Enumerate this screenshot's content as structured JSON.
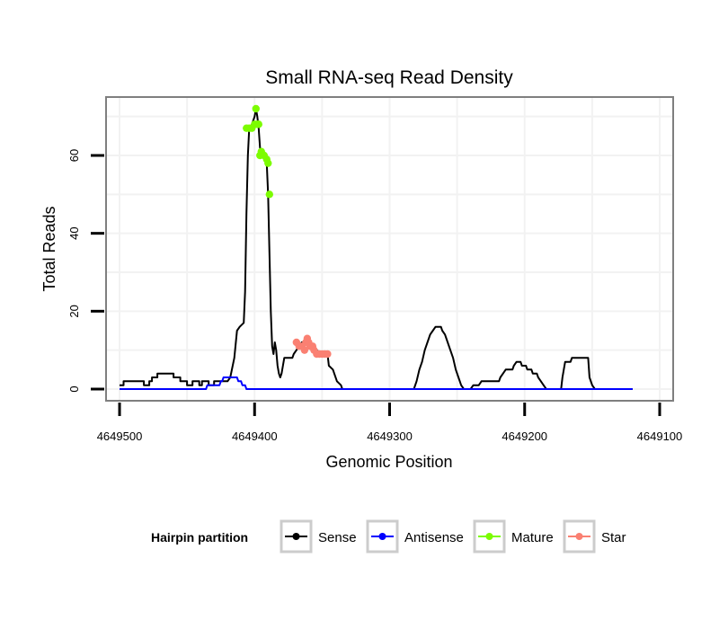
{
  "chart_data": {
    "type": "line",
    "title": "Small RNA-seq Read Density",
    "xlabel": "Genomic Position",
    "ylabel": "Total Reads",
    "xlim": [
      4649510,
      4649090
    ],
    "ylim": [
      -3,
      75
    ],
    "x_reversed": true,
    "x_ticks": [
      4649500,
      4649400,
      4649300,
      4649200,
      4649100
    ],
    "x_tick_labels": [
      "4649500",
      "4649400",
      "4649300",
      "4649200",
      "4649100"
    ],
    "y_ticks": [
      0,
      20,
      40,
      60
    ],
    "y_tick_labels": [
      "0",
      "20",
      "40",
      "60"
    ],
    "grid": true,
    "legend": {
      "title": "Hairpin partition",
      "position": "bottom",
      "entries": [
        "Sense",
        "Antisense",
        "Mature",
        "Star"
      ]
    },
    "series": [
      {
        "name": "Sense",
        "color": "#000000",
        "style": "line",
        "points": [
          [
            4649500,
            1
          ],
          [
            4649497,
            1
          ],
          [
            4649497,
            2
          ],
          [
            4649495,
            2
          ],
          [
            4649482,
            2
          ],
          [
            4649482,
            1
          ],
          [
            4649478,
            1
          ],
          [
            4649478,
            2
          ],
          [
            4649476,
            2
          ],
          [
            4649476,
            3
          ],
          [
            4649472,
            3
          ],
          [
            4649472,
            4
          ],
          [
            4649460,
            4
          ],
          [
            4649460,
            3
          ],
          [
            4649455,
            3
          ],
          [
            4649455,
            2
          ],
          [
            4649450,
            2
          ],
          [
            4649450,
            1
          ],
          [
            4649446,
            1
          ],
          [
            4649446,
            2
          ],
          [
            4649441,
            2
          ],
          [
            4649441,
            1
          ],
          [
            4649439,
            1
          ],
          [
            4649439,
            2
          ],
          [
            4649434,
            2
          ],
          [
            4649434,
            1
          ],
          [
            4649430,
            1
          ],
          [
            4649430,
            2
          ],
          [
            4649420,
            2
          ],
          [
            4649418,
            3
          ],
          [
            4649415,
            8
          ],
          [
            4649413,
            15
          ],
          [
            4649411,
            16
          ],
          [
            4649408,
            17
          ],
          [
            4649407,
            25
          ],
          [
            4649406,
            45
          ],
          [
            4649405,
            60
          ],
          [
            4649404,
            67
          ],
          [
            4649402,
            68
          ],
          [
            4649400,
            70
          ],
          [
            4649399,
            72
          ],
          [
            4649398,
            70
          ],
          [
            4649397,
            67
          ],
          [
            4649396,
            62
          ],
          [
            4649394,
            60
          ],
          [
            4649392,
            59
          ],
          [
            4649391,
            58
          ],
          [
            4649390,
            50
          ],
          [
            4649389,
            35
          ],
          [
            4649388,
            20
          ],
          [
            4649387,
            11
          ],
          [
            4649386,
            9
          ],
          [
            4649385,
            12
          ],
          [
            4649384,
            10
          ],
          [
            4649383,
            6
          ],
          [
            4649382,
            4
          ],
          [
            4649381,
            3
          ],
          [
            4649380,
            4
          ],
          [
            4649379,
            6
          ],
          [
            4649378,
            8
          ],
          [
            4649372,
            8
          ],
          [
            4649371,
            9
          ],
          [
            4649369,
            10
          ],
          [
            4649367,
            11
          ],
          [
            4649365,
            12
          ],
          [
            4649362,
            12
          ],
          [
            4649360,
            11
          ],
          [
            4649357,
            10
          ],
          [
            4649354,
            10
          ],
          [
            4649350,
            9
          ],
          [
            4649346,
            9
          ],
          [
            4649345,
            6
          ],
          [
            4649342,
            5
          ],
          [
            4649339,
            2
          ],
          [
            4649336,
            1
          ],
          [
            4649335,
            0
          ],
          [
            4649282,
            0
          ],
          [
            4649280,
            2
          ],
          [
            4649278,
            5
          ],
          [
            4649276,
            7
          ],
          [
            4649274,
            10
          ],
          [
            4649272,
            12
          ],
          [
            4649270,
            14
          ],
          [
            4649268,
            15
          ],
          [
            4649266,
            16
          ],
          [
            4649262,
            16
          ],
          [
            4649261,
            15
          ],
          [
            4649259,
            14
          ],
          [
            4649257,
            12
          ],
          [
            4649255,
            10
          ],
          [
            4649253,
            8
          ],
          [
            4649251,
            5
          ],
          [
            4649249,
            3
          ],
          [
            4649247,
            1
          ],
          [
            4649245,
            0
          ],
          [
            4649240,
            0
          ],
          [
            4649238,
            1
          ],
          [
            4649234,
            1
          ],
          [
            4649232,
            2
          ],
          [
            4649219,
            2
          ],
          [
            4649218,
            3
          ],
          [
            4649216,
            4
          ],
          [
            4649214,
            5
          ],
          [
            4649209,
            5
          ],
          [
            4649208,
            6
          ],
          [
            4649206,
            7
          ],
          [
            4649203,
            7
          ],
          [
            4649202,
            6
          ],
          [
            4649199,
            6
          ],
          [
            4649198,
            5
          ],
          [
            4649195,
            5
          ],
          [
            4649194,
            4
          ],
          [
            4649191,
            4
          ],
          [
            4649190,
            3
          ],
          [
            4649188,
            2
          ],
          [
            4649186,
            1
          ],
          [
            4649184,
            0
          ],
          [
            4649173,
            0
          ],
          [
            4649172,
            3
          ],
          [
            4649171,
            5
          ],
          [
            4649170,
            7
          ],
          [
            4649166,
            7
          ],
          [
            4649165,
            8
          ],
          [
            4649153,
            8
          ],
          [
            4649152,
            3
          ],
          [
            4649150,
            1
          ],
          [
            4649148,
            0
          ],
          [
            4649120,
            0
          ]
        ]
      },
      {
        "name": "Antisense",
        "color": "#0000ff",
        "style": "line",
        "points": [
          [
            4649500,
            0
          ],
          [
            4649436,
            0
          ],
          [
            4649435,
            1
          ],
          [
            4649426,
            1
          ],
          [
            4649425,
            2
          ],
          [
            4649424,
            2
          ],
          [
            4649423,
            3
          ],
          [
            4649413,
            3
          ],
          [
            4649412,
            2
          ],
          [
            4649410,
            2
          ],
          [
            4649409,
            1
          ],
          [
            4649407,
            1
          ],
          [
            4649406,
            0
          ],
          [
            4649120,
            0
          ]
        ]
      },
      {
        "name": "Mature",
        "color": "#7cfc00",
        "style": "points",
        "points": [
          [
            4649406,
            67
          ],
          [
            4649404,
            67
          ],
          [
            4649402,
            67
          ],
          [
            4649400,
            68
          ],
          [
            4649399,
            72
          ],
          [
            4649398,
            68
          ],
          [
            4649397,
            68
          ],
          [
            4649396,
            60
          ],
          [
            4649395,
            61
          ],
          [
            4649393,
            60
          ],
          [
            4649391,
            59
          ],
          [
            4649390,
            58
          ],
          [
            4649389,
            50
          ]
        ]
      },
      {
        "name": "Star",
        "color": "#fa8072",
        "style": "points",
        "points": [
          [
            4649369,
            12
          ],
          [
            4649367,
            11
          ],
          [
            4649365,
            11
          ],
          [
            4649363,
            10
          ],
          [
            4649362,
            12
          ],
          [
            4649361,
            13
          ],
          [
            4649360,
            12
          ],
          [
            4649359,
            11
          ],
          [
            4649357,
            11
          ],
          [
            4649356,
            10
          ],
          [
            4649354,
            9
          ],
          [
            4649352,
            9
          ],
          [
            4649350,
            9
          ],
          [
            4649348,
            9
          ],
          [
            4649346,
            9
          ]
        ]
      }
    ]
  }
}
